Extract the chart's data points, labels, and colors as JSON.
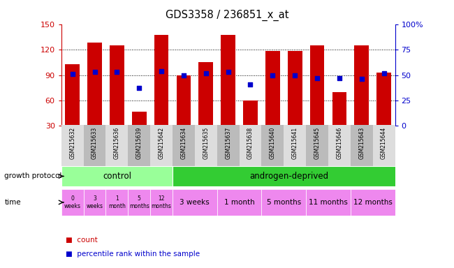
{
  "title": "GDS3358 / 236851_x_at",
  "samples": [
    "GSM215632",
    "GSM215633",
    "GSM215636",
    "GSM215639",
    "GSM215642",
    "GSM215634",
    "GSM215635",
    "GSM215637",
    "GSM215638",
    "GSM215640",
    "GSM215641",
    "GSM215645",
    "GSM215646",
    "GSM215643",
    "GSM215644"
  ],
  "counts": [
    103,
    128,
    125,
    47,
    137,
    90,
    105,
    137,
    60,
    118,
    118,
    125,
    70,
    125,
    93
  ],
  "percentiles": [
    51,
    53,
    53,
    37,
    54,
    50,
    52,
    53,
    41,
    50,
    50,
    47,
    47,
    46,
    52
  ],
  "bar_color": "#cc0000",
  "dot_color": "#0000cc",
  "left_axis_color": "#cc0000",
  "right_axis_color": "#0000cc",
  "left_ylim": [
    30,
    150
  ],
  "right_ylim": [
    0,
    100
  ],
  "left_yticks": [
    30,
    60,
    90,
    120,
    150
  ],
  "right_yticks": [
    0,
    25,
    50,
    75,
    100
  ],
  "right_yticklabels": [
    "0",
    "25",
    "50",
    "75",
    "100%"
  ],
  "control_samples": 5,
  "control_label": "control",
  "androgen_label": "androgen-deprived",
  "growth_protocol_label": "growth protocol",
  "time_label": "time",
  "control_color": "#99ff99",
  "androgen_color": "#33cc33",
  "time_color": "#ee88ee",
  "time_labels_control": [
    "0\nweeks",
    "3\nweeks",
    "1\nmonth",
    "5\nmonths",
    "12\nmonths"
  ],
  "time_labels_androgen": [
    "3 weeks",
    "1 month",
    "5 months",
    "11 months",
    "12 months"
  ],
  "legend_count_color": "#cc0000",
  "legend_percentile_color": "#0000cc",
  "bar_bottom": 30,
  "xtick_bg_even": "#dddddd",
  "xtick_bg_odd": "#bbbbbb"
}
